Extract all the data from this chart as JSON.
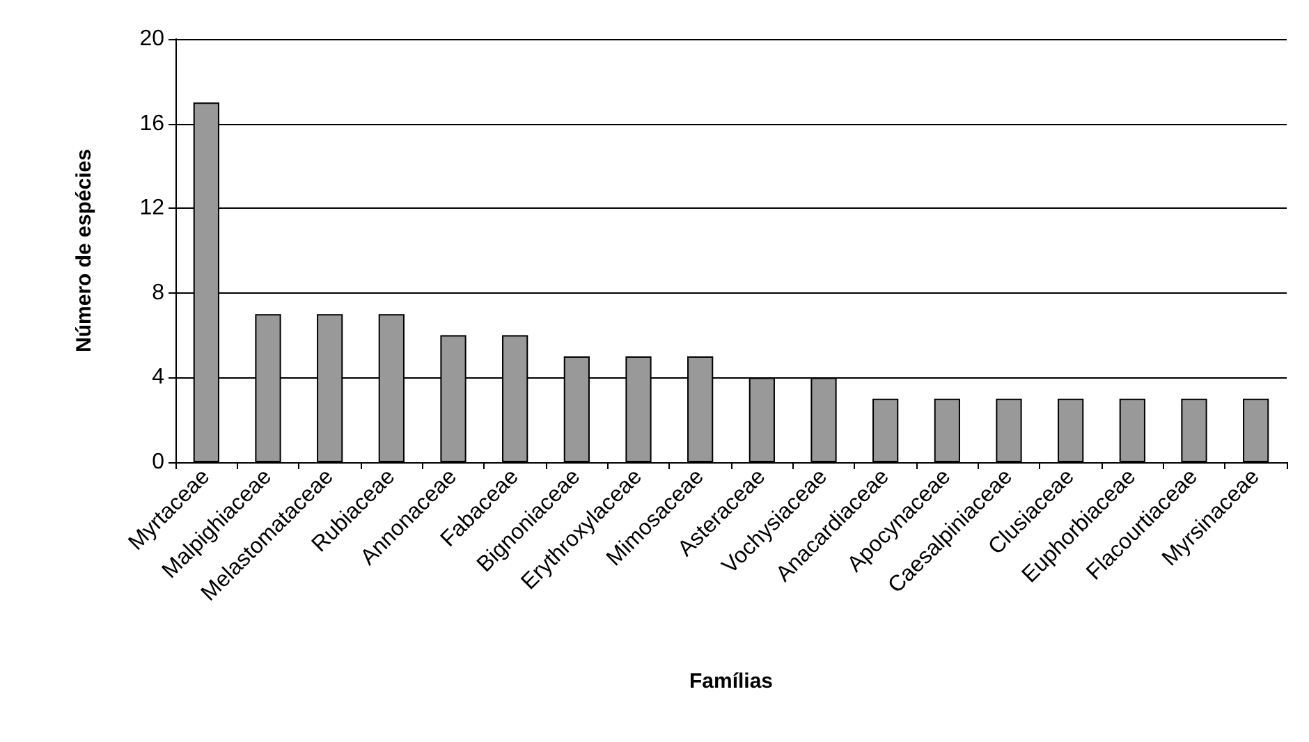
{
  "chart_data": {
    "type": "bar",
    "xlabel": "Famílias",
    "ylabel": "Número de espécies",
    "categories": [
      "Myrtaceae",
      "Malpighiaceae",
      "Melastomataceae",
      "Rubiaceae",
      "Annonaceae",
      "Fabaceae",
      "Bignoniaceae",
      "Erythroxylaceae",
      "Mimosaceae",
      "Asteraceae",
      "Vochysiaceae",
      "Anacardiaceae",
      "Apocynaceae",
      "Caesalpiniaceae",
      "Clusiaceae",
      "Euphorbiaceae",
      "Flacourtiaceae",
      "Myrsinaceae"
    ],
    "values": [
      17,
      7,
      7,
      7,
      6,
      6,
      5,
      5,
      5,
      4,
      4,
      3,
      3,
      3,
      3,
      3,
      3,
      3
    ],
    "color": "#999999",
    "ylim": [
      0,
      20
    ],
    "yticks": [
      0,
      4,
      8,
      12,
      16,
      20
    ],
    "grid": "y"
  }
}
